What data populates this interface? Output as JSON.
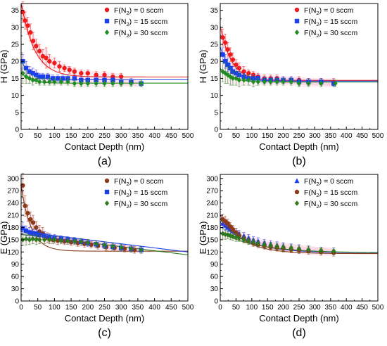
{
  "chart_data": [
    {
      "panel": "(a)",
      "type": "scatter",
      "xlabel": "Contact Depth (nm)",
      "ylabel": "H (GPa)",
      "xlim": [
        0,
        500
      ],
      "ylim": [
        0,
        37
      ],
      "xticks": [
        0,
        50,
        100,
        150,
        200,
        250,
        300,
        350,
        400,
        450,
        500
      ],
      "yticks": [
        0,
        5,
        10,
        15,
        20,
        25,
        30,
        35
      ],
      "legend": "top-right",
      "series": [
        {
          "name": "F(N2) = 0 sccm",
          "legend_main": "F(N",
          "legend_sub": "2",
          "legend_tail": ") = 0 sccm",
          "color": "#ee1c1c",
          "marker": "circle",
          "x": [
            5,
            12,
            20,
            28,
            36,
            45,
            55,
            65,
            75,
            85,
            100,
            115,
            130,
            145,
            160,
            180,
            200,
            225,
            250,
            275,
            300
          ],
          "y": [
            34.5,
            32,
            30.5,
            28.5,
            26,
            24.5,
            23,
            21.5,
            21,
            20,
            19.5,
            18.5,
            18,
            17.5,
            17,
            16.5,
            16.5,
            16,
            16,
            15.5,
            15.5
          ],
          "err": [
            3,
            2.5,
            2.5,
            2.5,
            2.5,
            2,
            2,
            2,
            3,
            2,
            1.5,
            1.5,
            1,
            1,
            1,
            1,
            1,
            1,
            1,
            1,
            1
          ],
          "fit": {
            "base": 15.4,
            "amp": 22,
            "tau": 40
          }
        },
        {
          "name": "F(N2) = 15 sccm",
          "legend_main": "F(N",
          "legend_sub": "2",
          "legend_tail": ") = 15 sccm",
          "color": "#1c3fee",
          "marker": "square",
          "x": [
            5,
            15,
            25,
            35,
            45,
            55,
            65,
            80,
            95,
            110,
            125,
            140,
            160,
            180,
            200,
            225,
            250,
            275,
            300,
            330,
            360
          ],
          "y": [
            20,
            18,
            17,
            16.5,
            16,
            15.5,
            15.5,
            15.5,
            15,
            15,
            15,
            15,
            15,
            14.5,
            14.5,
            14.5,
            14.5,
            14.5,
            14,
            14,
            13.5
          ],
          "err": [
            2,
            2,
            1.5,
            1.5,
            1.5,
            1,
            1,
            1,
            1,
            1,
            1,
            1,
            1,
            1,
            1,
            1,
            1,
            1,
            1,
            1,
            1
          ],
          "fit": {
            "base": 14.6,
            "amp": 5.5,
            "tau": 30
          }
        },
        {
          "name": "F(N2) = 30 sccm",
          "legend_main": "F(N",
          "legend_sub": "2",
          "legend_tail": ") = 30 sccm",
          "color": "#1e8c1e",
          "marker": "diamond",
          "x": [
            5,
            15,
            25,
            35,
            45,
            55,
            70,
            85,
            100,
            120,
            140,
            160,
            180,
            200,
            225,
            250,
            275,
            300,
            330,
            360
          ],
          "y": [
            16.5,
            15.5,
            15,
            14.5,
            14.5,
            14,
            14,
            14,
            14,
            14,
            14,
            13.5,
            13.5,
            13.5,
            13.5,
            13.5,
            13.5,
            13.5,
            13.5,
            13.5
          ],
          "err": [
            3,
            2,
            1.5,
            1.5,
            1,
            1,
            1,
            1,
            1,
            1,
            1,
            1,
            1,
            1,
            1,
            1,
            1,
            1,
            1,
            1
          ],
          "fit": {
            "base": 13.6,
            "amp": 3.2,
            "tau": 25
          }
        }
      ],
      "caption": "(a)"
    },
    {
      "panel": "(b)",
      "type": "scatter",
      "xlabel": "Contact Depth (nm)",
      "ylabel": "H (GPa)",
      "xlim": [
        0,
        500
      ],
      "ylim": [
        0,
        37
      ],
      "xticks": [
        0,
        50,
        100,
        150,
        200,
        250,
        300,
        350,
        400,
        450,
        500
      ],
      "yticks": [
        0,
        5,
        10,
        15,
        20,
        25,
        30,
        35
      ],
      "legend": "top-right",
      "series": [
        {
          "name": "F(N2) = 0 sccm",
          "legend_main": "F(N",
          "legend_sub": "2",
          "legend_tail": ") = 0 sccm",
          "color": "#ee1c1c",
          "marker": "circle",
          "x": [
            8,
            16,
            24,
            32,
            40,
            50,
            60,
            75,
            90,
            105,
            120,
            140,
            160,
            180,
            200,
            225,
            250,
            280,
            320,
            360
          ],
          "y": [
            27,
            25.5,
            23.5,
            22,
            20.5,
            19,
            18,
            17,
            16.5,
            16,
            15.5,
            15,
            15,
            15,
            14.5,
            14.5,
            14.5,
            14,
            14,
            14
          ],
          "err": [
            2.5,
            2.5,
            2,
            2,
            2,
            1.5,
            1.5,
            1.5,
            1,
            1,
            1,
            1,
            1,
            1,
            1,
            1,
            1,
            1,
            1,
            1
          ],
          "fit": {
            "base": 14.4,
            "amp": 16,
            "tau": 35
          }
        },
        {
          "name": "F(N2) = 15 sccm",
          "legend_main": "F(N",
          "legend_sub": "2",
          "legend_tail": ") = 15 sccm",
          "color": "#1c3fee",
          "marker": "square",
          "x": [
            8,
            16,
            24,
            32,
            40,
            50,
            60,
            75,
            90,
            105,
            120,
            140,
            160,
            180,
            200,
            225,
            250,
            280,
            320,
            360
          ],
          "y": [
            22,
            20,
            19,
            18,
            17,
            16.5,
            16,
            15.5,
            15,
            15,
            15,
            14.5,
            14.5,
            14.5,
            14.5,
            14.5,
            14,
            14,
            14,
            13.5
          ],
          "err": [
            2,
            2,
            2,
            1.5,
            1.5,
            1.5,
            1,
            1,
            1,
            1,
            1,
            1,
            1,
            1,
            1,
            1,
            1,
            1,
            1,
            1
          ],
          "fit": {
            "base": 14.2,
            "amp": 10,
            "tau": 35
          }
        },
        {
          "name": "F(N2) = 30 sccm",
          "legend_main": "F(N",
          "legend_sub": "2",
          "legend_tail": ") = 30 sccm",
          "color": "#1e8c1e",
          "marker": "diamond",
          "x": [
            8,
            16,
            24,
            32,
            40,
            50,
            60,
            75,
            90,
            105,
            120,
            140,
            160,
            180,
            200,
            225,
            250,
            280,
            320,
            365
          ],
          "y": [
            17,
            16.5,
            16,
            15.5,
            15,
            15,
            14.5,
            14.5,
            14.5,
            14,
            14,
            14,
            14,
            14,
            14,
            14,
            13.5,
            13.5,
            13.5,
            13.5
          ],
          "err": [
            3,
            3,
            2.5,
            2.5,
            2,
            2,
            2,
            1.5,
            1.5,
            1.5,
            1,
            1,
            1,
            1,
            1,
            1,
            1,
            1,
            1,
            1
          ],
          "fit": {
            "base": 13.9,
            "amp": 4,
            "tau": 35
          }
        }
      ],
      "caption": "(b)"
    },
    {
      "panel": "(c)",
      "type": "scatter",
      "xlabel": "Contact Depth (nm)",
      "ylabel": "E (GPa)",
      "xlim": [
        0,
        500
      ],
      "ylim": [
        0,
        310
      ],
      "xticks": [
        0,
        50,
        100,
        150,
        200,
        250,
        300,
        350,
        400,
        450,
        500
      ],
      "yticks": [
        0,
        30,
        60,
        90,
        120,
        150,
        180,
        210,
        240,
        270,
        300
      ],
      "legend": "top-right",
      "series": [
        {
          "name": "F(N2) = 0 sccm",
          "legend_main": "F(N",
          "legend_sub": "2",
          "legend_tail": ") = 0 sccm",
          "color": "#8b3a1a",
          "marker": "circle",
          "x": [
            5,
            12,
            20,
            28,
            36,
            45,
            55,
            65,
            80,
            95,
            110,
            130,
            150,
            170,
            190,
            210,
            230,
            255,
            280,
            310,
            340
          ],
          "y": [
            283,
            233,
            215,
            200,
            192,
            180,
            170,
            165,
            155,
            150,
            148,
            146,
            144,
            142,
            140,
            138,
            135,
            132,
            130,
            128,
            125
          ],
          "err": [
            30,
            25,
            20,
            18,
            18,
            15,
            15,
            15,
            12,
            10,
            10,
            8,
            8,
            8,
            8,
            8,
            8,
            8,
            8,
            8,
            8
          ],
          "fit": {
            "base": 122,
            "amp": 160,
            "tau": 30,
            "slope": 0
          }
        },
        {
          "name": "F(N2) = 15 sccm",
          "legend_main": "F(N",
          "legend_sub": "2",
          "legend_tail": ") = 15 sccm",
          "color": "#1c3fee",
          "marker": "square",
          "x": [
            5,
            15,
            25,
            35,
            45,
            55,
            70,
            85,
            100,
            120,
            140,
            160,
            180,
            200,
            225,
            250,
            275,
            300,
            330,
            360
          ],
          "y": [
            178,
            172,
            168,
            166,
            165,
            162,
            160,
            157,
            155,
            152,
            150,
            148,
            145,
            142,
            139,
            136,
            133,
            130,
            128,
            125
          ],
          "err": [
            15,
            12,
            12,
            10,
            10,
            10,
            10,
            8,
            8,
            8,
            8,
            8,
            8,
            8,
            8,
            8,
            8,
            8,
            8,
            8
          ],
          "fit": {
            "base": 170,
            "amp": 0,
            "tau": 30,
            "slope": -0.1
          }
        },
        {
          "name": "F(N2) = 30 sccm",
          "legend_main": "F(N",
          "legend_sub": "2",
          "legend_tail": ") = 30 sccm",
          "color": "#2e7a1e",
          "marker": "diamond",
          "x": [
            5,
            15,
            25,
            35,
            45,
            55,
            70,
            85,
            100,
            120,
            140,
            160,
            180,
            200,
            225,
            250,
            275,
            300,
            330,
            360
          ],
          "y": [
            150,
            152,
            150,
            152,
            150,
            150,
            150,
            150,
            150,
            148,
            147,
            146,
            145,
            143,
            140,
            137,
            134,
            131,
            128,
            125
          ],
          "err": [
            15,
            15,
            12,
            12,
            12,
            10,
            10,
            10,
            8,
            8,
            8,
            8,
            8,
            8,
            8,
            8,
            8,
            8,
            8,
            8
          ],
          "fit": {
            "base": 163,
            "amp": 0,
            "tau": 30,
            "slope": -0.1
          }
        }
      ],
      "caption": "(c)"
    },
    {
      "panel": "(d)",
      "type": "scatter",
      "xlabel": "Contact Depth (nm)",
      "ylabel": "E (GPa)",
      "xlim": [
        0,
        500
      ],
      "ylim": [
        0,
        310
      ],
      "xticks": [
        0,
        50,
        100,
        150,
        200,
        250,
        300,
        350,
        400,
        450,
        500
      ],
      "yticks": [
        0,
        30,
        60,
        90,
        120,
        150,
        180,
        210,
        240,
        270,
        300
      ],
      "legend": "top-right",
      "series": [
        {
          "name": "F(N2) = 0 sccm",
          "legend_main": "F(N",
          "legend_sub": "2",
          "legend_tail": ") = 0 sccm",
          "color": "#1c3fee",
          "marker": "triangle",
          "x": [
            8,
            16,
            24,
            32,
            40,
            50,
            60,
            75,
            90,
            105,
            120,
            140,
            160,
            180,
            200,
            225,
            250,
            280,
            320,
            360
          ],
          "y": [
            190,
            185,
            180,
            176,
            172,
            168,
            165,
            160,
            155,
            150,
            147,
            143,
            140,
            137,
            135,
            132,
            130,
            127,
            124,
            122
          ],
          "err": [
            12,
            12,
            10,
            10,
            10,
            10,
            8,
            8,
            8,
            8,
            8,
            8,
            8,
            8,
            8,
            8,
            8,
            8,
            8,
            8
          ],
          "fit": {
            "base": 118,
            "amp": 75,
            "tau": 90
          }
        },
        {
          "name": "F(N2) = 15 sccm",
          "legend_main": "F(N",
          "legend_sub": "2",
          "legend_tail": ") = 15 sccm",
          "color": "#8b3a1a",
          "marker": "circle",
          "x": [
            8,
            16,
            24,
            32,
            40,
            50,
            60,
            75,
            90,
            105,
            120,
            140,
            160,
            180,
            200,
            225,
            250,
            280,
            320,
            360
          ],
          "y": [
            200,
            195,
            190,
            182,
            175,
            168,
            160,
            152,
            147,
            142,
            138,
            135,
            132,
            130,
            128,
            126,
            124,
            122,
            120,
            118
          ],
          "err": [
            12,
            12,
            10,
            10,
            10,
            10,
            8,
            8,
            8,
            8,
            8,
            8,
            8,
            8,
            8,
            8,
            8,
            8,
            8,
            8
          ],
          "fit": {
            "base": 116,
            "amp": 95,
            "tau": 70
          }
        },
        {
          "name": "F(N2) = 30 sccm",
          "legend_main": "F(N",
          "legend_sub": "2",
          "legend_tail": ") = 30 sccm",
          "color": "#2e7a1e",
          "marker": "diamond",
          "x": [
            8,
            16,
            24,
            32,
            40,
            50,
            60,
            75,
            90,
            105,
            120,
            140,
            160,
            180,
            200,
            225,
            250,
            280,
            320,
            360
          ],
          "y": [
            165,
            163,
            162,
            160,
            158,
            156,
            154,
            150,
            147,
            144,
            141,
            138,
            136,
            134,
            132,
            130,
            128,
            126,
            124,
            122
          ],
          "err": [
            12,
            12,
            10,
            10,
            10,
            10,
            8,
            8,
            8,
            8,
            8,
            8,
            8,
            8,
            8,
            8,
            8,
            8,
            8,
            8
          ],
          "fit": {
            "base": 118,
            "amp": 50,
            "tau": 120
          }
        }
      ],
      "caption": "(d)"
    }
  ]
}
